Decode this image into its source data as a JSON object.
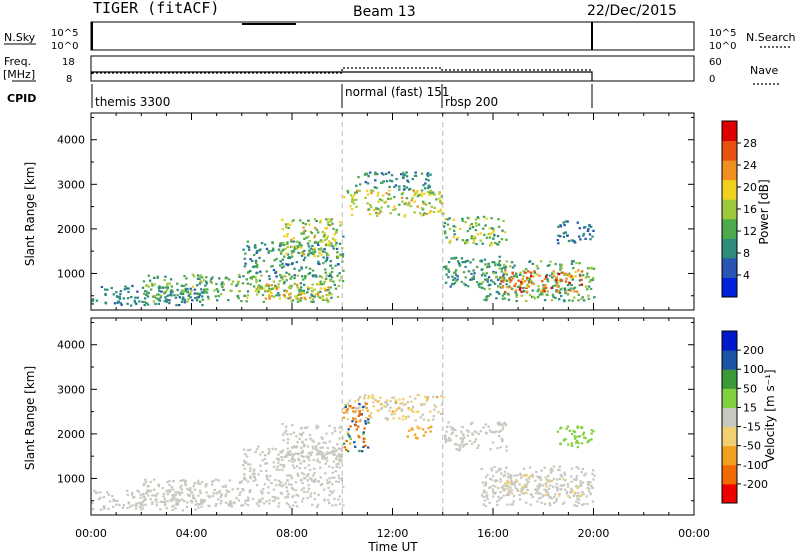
{
  "header": {
    "radar": "TIGER (fitACF)",
    "beam": "Beam 13",
    "date": "22/Dec/2015"
  },
  "nsky_panel": {
    "label": "N.Sky",
    "left_ticks": [
      "10^5",
      "10^0"
    ],
    "right_ticks": [
      "10^5",
      "10^0"
    ],
    "right_label": "N.Search"
  },
  "freq_panel": {
    "label_line1": "Freq.",
    "label_line2": "[MHz]",
    "left_ticks": [
      "18",
      "8"
    ],
    "right_ticks": [
      "60",
      "0"
    ],
    "right_label": "Nave"
  },
  "cpid_panel": {
    "label": "CPID",
    "segments": [
      {
        "text": "themis 3300",
        "start_hour": 0
      },
      {
        "text": "normal (fast) 151",
        "start_hour": 10
      },
      {
        "text": "rbsp 200",
        "start_hour": 14
      }
    ]
  },
  "colors": {
    "power_scale": [
      "#0022dd",
      "#2a55b5",
      "#2e8c7c",
      "#4caa4c",
      "#9dc83a",
      "#f0d020",
      "#f09020",
      "#e85010",
      "#dd0000"
    ],
    "velocity_scale": [
      "#ee0000",
      "#f06a00",
      "#f0a020",
      "#f0d070",
      "#c8c8c0",
      "#80d040",
      "#3a9a3a",
      "#1c55a8",
      "#0018cc"
    ]
  },
  "chart_data": [
    {
      "type": "heatmap",
      "name": "power",
      "xlabel": "",
      "ylabel": "Slant Range [km]",
      "xlim": [
        0,
        24
      ],
      "ylim": [
        180,
        4600
      ],
      "y_ticks": [
        1000,
        2000,
        3000,
        4000
      ],
      "colorbar": {
        "label": "Power [dB]",
        "range": [
          0,
          32
        ],
        "ticks": [
          4,
          8,
          12,
          16,
          20,
          24,
          28
        ]
      },
      "program_boundaries_hours": [
        10,
        14
      ],
      "data_end_hour": 20,
      "echo_regions": [
        {
          "t": [
            0,
            4.5
          ],
          "r": [
            300,
            750
          ],
          "v": [
            6,
            10
          ]
        },
        {
          "t": [
            2,
            10
          ],
          "r": [
            380,
            1000
          ],
          "v": [
            8,
            18
          ]
        },
        {
          "t": [
            6.5,
            9.5
          ],
          "r": [
            450,
            800
          ],
          "v": [
            16,
            24
          ]
        },
        {
          "t": [
            6,
            10
          ],
          "r": [
            950,
            1750
          ],
          "v": [
            6,
            14
          ]
        },
        {
          "t": [
            7.5,
            10
          ],
          "r": [
            1400,
            2250
          ],
          "v": [
            10,
            22
          ]
        },
        {
          "t": [
            10,
            14
          ],
          "r": [
            2300,
            2900
          ],
          "v": [
            12,
            22
          ]
        },
        {
          "t": [
            10.5,
            13.5
          ],
          "r": [
            2900,
            3300
          ],
          "v": [
            6,
            12
          ]
        },
        {
          "t": [
            14,
            16.5
          ],
          "r": [
            1650,
            2300
          ],
          "v": [
            8,
            20
          ]
        },
        {
          "t": [
            14,
            16.5
          ],
          "r": [
            700,
            1400
          ],
          "v": [
            6,
            12
          ]
        },
        {
          "t": [
            15.5,
            20
          ],
          "r": [
            400,
            1300
          ],
          "v": [
            8,
            16
          ]
        },
        {
          "t": [
            16.3,
            19.5
          ],
          "r": [
            600,
            1100
          ],
          "v": [
            20,
            30
          ]
        },
        {
          "t": [
            18.5,
            20
          ],
          "r": [
            1700,
            2200
          ],
          "v": [
            4,
            10
          ]
        }
      ]
    },
    {
      "type": "heatmap",
      "name": "velocity",
      "xlabel": "Time UT",
      "ylabel": "Slant Range [km]",
      "xlim": [
        0,
        24
      ],
      "ylim": [
        180,
        4600
      ],
      "y_ticks": [
        1000,
        2000,
        3000,
        4000
      ],
      "x_tick_labels": [
        "00:00",
        "04:00",
        "08:00",
        "12:00",
        "16:00",
        "20:00",
        "00:00"
      ],
      "colorbar": {
        "label": "Velocity [m s⁻¹]",
        "tick_labels": [
          "200",
          "100",
          "50",
          "15",
          "-15",
          "-50",
          "-100",
          "-200"
        ]
      },
      "program_boundaries_hours": [
        10,
        14
      ],
      "data_end_hour": 20,
      "echo_regions": [
        {
          "t": [
            0,
            4.5
          ],
          "r": [
            300,
            750
          ],
          "v": [
            -15,
            15
          ]
        },
        {
          "t": [
            2,
            10
          ],
          "r": [
            380,
            1000
          ],
          "v": [
            -15,
            15
          ]
        },
        {
          "t": [
            6,
            10
          ],
          "r": [
            950,
            1750
          ],
          "v": [
            -15,
            15
          ]
        },
        {
          "t": [
            7.5,
            10
          ],
          "r": [
            1400,
            2250
          ],
          "v": [
            -15,
            15
          ]
        },
        {
          "t": [
            10,
            14
          ],
          "r": [
            2300,
            2900
          ],
          "v": [
            -60,
            15
          ]
        },
        {
          "t": [
            10,
            11
          ],
          "r": [
            1600,
            2700
          ],
          "v": [
            -200,
            200
          ]
        },
        {
          "t": [
            12.5,
            13.5
          ],
          "r": [
            1900,
            2200
          ],
          "v": [
            -100,
            -30
          ]
        },
        {
          "t": [
            14,
            16.5
          ],
          "r": [
            1650,
            2300
          ],
          "v": [
            -15,
            15
          ]
        },
        {
          "t": [
            15.5,
            20
          ],
          "r": [
            400,
            1300
          ],
          "v": [
            -15,
            15
          ]
        },
        {
          "t": [
            16.3,
            19.5
          ],
          "r": [
            600,
            1100
          ],
          "v": [
            -30,
            15
          ]
        },
        {
          "t": [
            18.5,
            20
          ],
          "r": [
            1700,
            2200
          ],
          "v": [
            15,
            50
          ]
        }
      ]
    }
  ],
  "x_axis_label": "Time UT"
}
